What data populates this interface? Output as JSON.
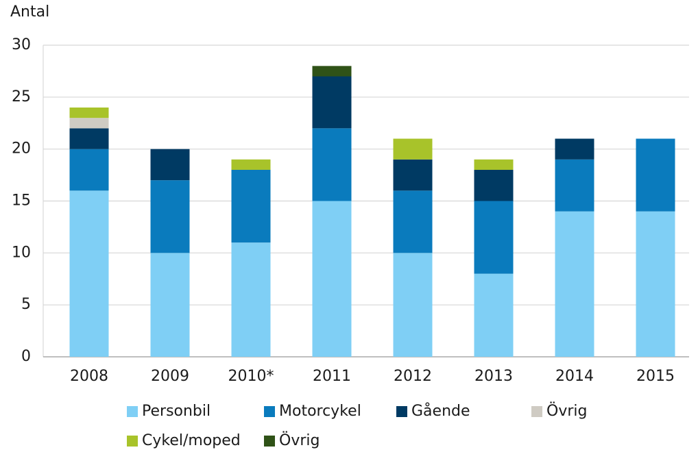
{
  "chart_data": {
    "type": "stacked_bar",
    "y_label": "Antal",
    "categories": [
      "2008",
      "2009",
      "2010*",
      "2011",
      "2012",
      "2013",
      "2014",
      "2015"
    ],
    "series": [
      {
        "name": "Personbil",
        "color": "#7fcff5",
        "values": [
          16,
          10,
          11,
          15,
          10,
          8,
          14,
          14
        ]
      },
      {
        "name": "Motorcykel",
        "color": "#0a7bbd",
        "values": [
          4,
          7,
          7,
          7,
          6,
          7,
          5,
          7
        ]
      },
      {
        "name": "Gående",
        "color": "#003a63",
        "values": [
          2,
          3,
          0,
          5,
          3,
          3,
          2,
          0
        ]
      },
      {
        "name": "Övrig",
        "color": "#cfcbc3",
        "values": [
          1,
          0,
          0,
          0,
          0,
          0,
          0,
          0
        ]
      },
      {
        "name": "Cykel/moped",
        "color": "#a8c32a",
        "values": [
          1,
          0,
          1,
          0,
          2,
          1,
          0,
          0
        ]
      },
      {
        "name": "Övrig",
        "color": "#2f5217",
        "values": [
          0,
          0,
          0,
          1,
          0,
          0,
          0,
          0
        ]
      }
    ],
    "ylim": [
      0,
      30
    ],
    "yticks": [
      0,
      5,
      10,
      15,
      20,
      25,
      30
    ],
    "grid": true
  }
}
